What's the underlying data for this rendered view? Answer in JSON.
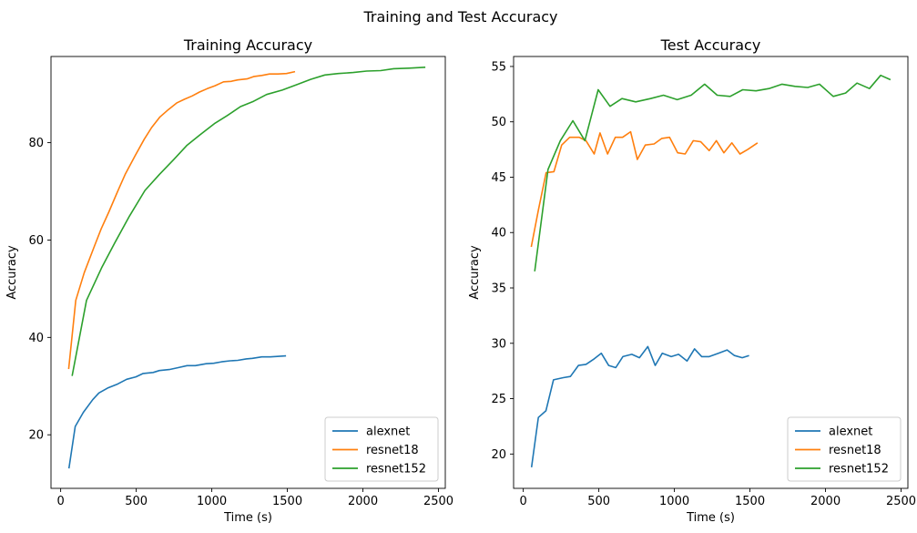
{
  "figure": {
    "suptitle": "Training and Test Accuracy"
  },
  "chart_data": [
    {
      "type": "line",
      "title": "Training Accuracy",
      "xlabel": "Time (s)",
      "ylabel": "Accuracy",
      "xlim": [
        -64,
        2545
      ],
      "ylim": [
        9.0,
        97.7
      ],
      "xticks": [
        0,
        500,
        1000,
        1500,
        2000,
        2500
      ],
      "yticks": [
        20,
        40,
        60,
        80
      ],
      "grid": false,
      "legend_loc": "lower right",
      "series": [
        {
          "name": "alexnet",
          "color": "#1f77b4",
          "x": [
            55,
            96,
            150,
            212,
            253,
            311,
            376,
            437,
            498,
            546,
            612,
            653,
            719,
            778,
            836,
            891,
            963,
            1013,
            1065,
            1122,
            1172,
            1228,
            1269,
            1331,
            1387,
            1434,
            1491
          ],
          "y": [
            13.1,
            21.7,
            24.6,
            27.2,
            28.6,
            29.6,
            30.4,
            31.4,
            31.9,
            32.6,
            32.8,
            33.2,
            33.4,
            33.8,
            34.2,
            34.2,
            34.6,
            34.7,
            35.0,
            35.2,
            35.3,
            35.6,
            35.7,
            36.0,
            36.0,
            36.1,
            36.2
          ]
        },
        {
          "name": "resnet18",
          "color": "#ff7f0e",
          "x": [
            53,
            100,
            156,
            223,
            268,
            319,
            381,
            427,
            494,
            553,
            602,
            657,
            713,
            770,
            818,
            870,
            919,
            970,
            1021,
            1078,
            1127,
            1172,
            1233,
            1280,
            1331,
            1382,
            1438,
            1494,
            1551
          ],
          "y": [
            33.5,
            47.6,
            53.3,
            58.7,
            62.3,
            65.8,
            70.3,
            73.5,
            77.4,
            80.7,
            83.1,
            85.3,
            86.8,
            88.2,
            88.9,
            89.6,
            90.4,
            91.1,
            91.7,
            92.5,
            92.6,
            92.9,
            93.1,
            93.6,
            93.8,
            94.1,
            94.1,
            94.2,
            94.6
          ]
        },
        {
          "name": "resnet152",
          "color": "#2ca02c",
          "x": [
            76,
            171,
            271,
            354,
            455,
            558,
            654,
            747,
            834,
            922,
            1017,
            1104,
            1190,
            1276,
            1363,
            1466,
            1569,
            1654,
            1748,
            1837,
            1935,
            2025,
            2117,
            2203,
            2305,
            2413
          ],
          "y": [
            32.1,
            47.6,
            54.3,
            59.2,
            64.9,
            70.2,
            73.5,
            76.5,
            79.4,
            81.6,
            83.9,
            85.6,
            87.4,
            88.5,
            89.9,
            90.8,
            92.0,
            93.0,
            93.9,
            94.2,
            94.4,
            94.7,
            94.8,
            95.2,
            95.3,
            95.5
          ]
        }
      ]
    },
    {
      "type": "line",
      "title": "Test Accuracy",
      "xlabel": "Time (s)",
      "ylabel": "Accuracy",
      "xlim": [
        -64,
        2545
      ],
      "ylim": [
        16.9,
        55.9
      ],
      "xticks": [
        0,
        500,
        1000,
        1500,
        2000,
        2500
      ],
      "yticks": [
        20,
        25,
        30,
        35,
        40,
        45,
        50,
        55
      ],
      "grid": false,
      "legend_loc": "lower right",
      "series": [
        {
          "name": "alexnet",
          "color": "#1f77b4",
          "x": [
            55,
            100,
            150,
            200,
            265,
            312,
            365,
            415,
            470,
            516,
            565,
            612,
            659,
            718,
            769,
            824,
            873,
            920,
            979,
            1028,
            1084,
            1133,
            1181,
            1230,
            1291,
            1349,
            1397,
            1449,
            1494
          ],
          "y": [
            18.8,
            23.3,
            23.9,
            26.7,
            26.9,
            27.0,
            28.0,
            28.1,
            28.6,
            29.1,
            28.0,
            27.8,
            28.8,
            29.0,
            28.7,
            29.7,
            28.0,
            29.1,
            28.8,
            29.0,
            28.4,
            29.5,
            28.8,
            28.8,
            29.1,
            29.4,
            28.9,
            28.7,
            28.9
          ]
        },
        {
          "name": "resnet18",
          "color": "#ff7f0e",
          "x": [
            53,
            101,
            151,
            203,
            254,
            307,
            370,
            415,
            469,
            508,
            558,
            609,
            657,
            710,
            755,
            807,
            866,
            917,
            968,
            1022,
            1071,
            1125,
            1174,
            1230,
            1278,
            1327,
            1380,
            1434,
            1485,
            1550
          ],
          "y": [
            38.7,
            42.1,
            45.4,
            45.5,
            47.9,
            48.6,
            48.6,
            48.3,
            47.1,
            49.0,
            47.1,
            48.6,
            48.6,
            49.1,
            46.6,
            47.9,
            48.0,
            48.5,
            48.6,
            47.2,
            47.1,
            48.3,
            48.2,
            47.4,
            48.3,
            47.2,
            48.1,
            47.1,
            47.5,
            48.1
          ]
        },
        {
          "name": "resnet152",
          "color": "#2ca02c",
          "x": [
            76,
            164,
            245,
            328,
            408,
            496,
            574,
            653,
            744,
            842,
            928,
            1019,
            1111,
            1200,
            1283,
            1369,
            1452,
            1540,
            1626,
            1712,
            1799,
            1882,
            1960,
            2051,
            2133,
            2208,
            2291,
            2365,
            2430
          ],
          "y": [
            36.5,
            45.7,
            48.3,
            50.1,
            48.3,
            52.9,
            51.4,
            52.1,
            51.8,
            52.1,
            52.4,
            52.0,
            52.4,
            53.4,
            52.4,
            52.3,
            52.9,
            52.8,
            53.0,
            53.4,
            53.2,
            53.1,
            53.4,
            52.3,
            52.6,
            53.5,
            53.0,
            54.2,
            53.8
          ]
        }
      ]
    }
  ]
}
